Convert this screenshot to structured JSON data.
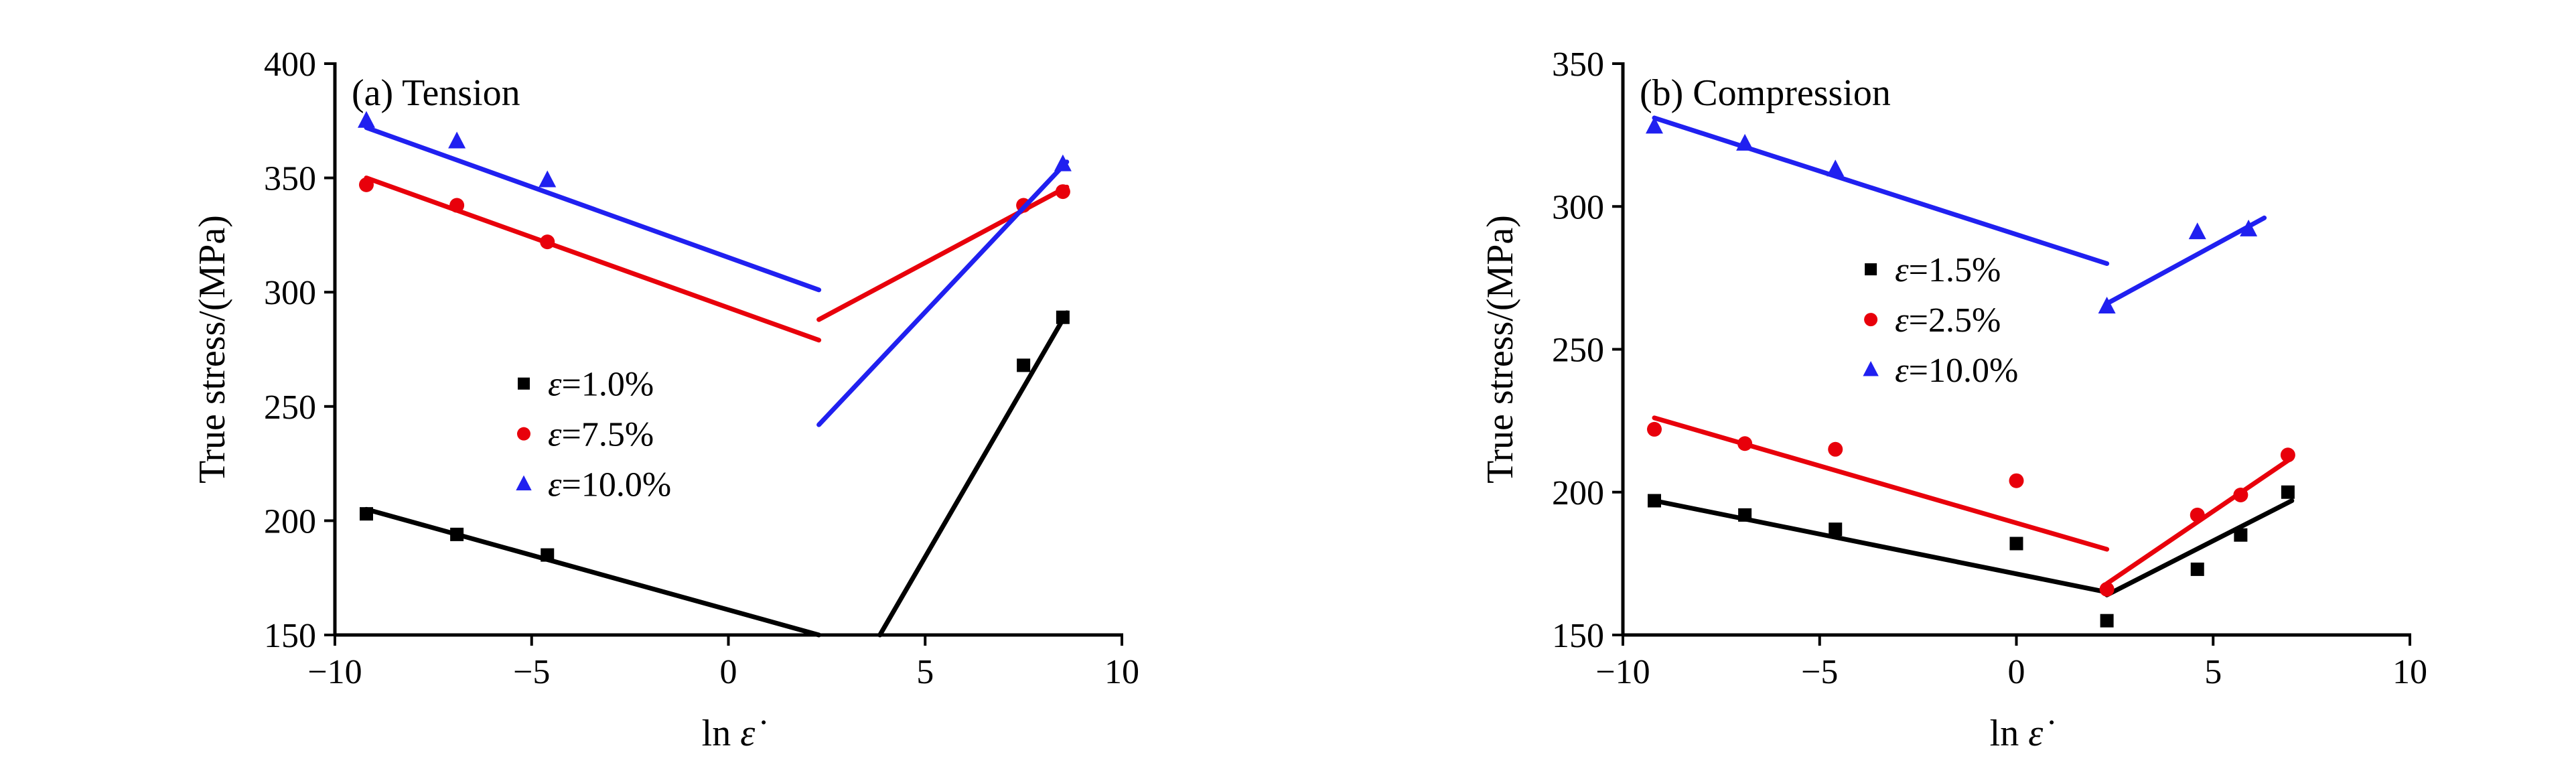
{
  "figure": {
    "background": "#ffffff",
    "axis_color": "#000000"
  },
  "chart_data": [
    {
      "type": "scatter",
      "panel_label": "(a) Tension",
      "xlabel_roman": "ln",
      "xlabel_italic": "ε̇",
      "ylabel": "True stress/(MPa)",
      "xlim": [
        -10,
        10
      ],
      "ylim": [
        150,
        400
      ],
      "xticks": [
        -10,
        -5,
        0,
        5,
        10
      ],
      "yticks": [
        150,
        200,
        250,
        300,
        350,
        400
      ],
      "grid": false,
      "legend": {
        "fx": 0.24,
        "fy": 0.56,
        "row_gap": 75
      },
      "series": [
        {
          "label_symbol": "ε",
          "label_rest": "=1.0%",
          "color": "#000000",
          "marker": "square",
          "points": [
            [
              -9.2,
              203
            ],
            [
              -6.9,
              194
            ],
            [
              -4.6,
              185
            ],
            [
              7.5,
              268
            ],
            [
              8.5,
              289
            ]
          ],
          "fit_lines": [
            [
              [
                -9.2,
                205
              ],
              [
                2.3,
                150
              ]
            ],
            [
              [
                3.85,
                150
              ],
              [
                8.6,
                291
              ]
            ]
          ]
        },
        {
          "label_symbol": "ε",
          "label_rest": "=7.5%",
          "color": "#e8000b",
          "marker": "circle",
          "points": [
            [
              -9.2,
              347
            ],
            [
              -6.9,
              338
            ],
            [
              -4.6,
              322
            ],
            [
              7.5,
              338
            ],
            [
              8.5,
              344
            ]
          ],
          "fit_lines": [
            [
              [
                -9.2,
                350
              ],
              [
                2.3,
                279
              ]
            ],
            [
              [
                2.3,
                288
              ],
              [
                8.6,
                346
              ]
            ]
          ]
        },
        {
          "label_symbol": "ε",
          "label_rest": "=10.0%",
          "color": "#2020f0",
          "marker": "triangle",
          "points": [
            [
              -9.2,
              375
            ],
            [
              -6.9,
              366
            ],
            [
              -4.6,
              349
            ],
            [
              8.5,
              356
            ]
          ],
          "fit_lines": [
            [
              [
                -9.2,
                372
              ],
              [
                2.3,
                301
              ]
            ],
            [
              [
                2.3,
                242
              ],
              [
                8.6,
                357
              ]
            ]
          ]
        }
      ]
    },
    {
      "type": "scatter",
      "panel_label": "(b) Compression",
      "xlabel_roman": "ln",
      "xlabel_italic": "ε̇",
      "ylabel": "True stress/(MPa)",
      "xlim": [
        -10,
        10
      ],
      "ylim": [
        150,
        350
      ],
      "xticks": [
        -10,
        -5,
        0,
        5,
        10
      ],
      "yticks": [
        150,
        200,
        250,
        300,
        350
      ],
      "grid": false,
      "legend": {
        "fx": 0.315,
        "fy": 0.36,
        "row_gap": 75
      },
      "series": [
        {
          "label_symbol": "ε",
          "label_rest": "=1.5%",
          "color": "#000000",
          "marker": "square",
          "points": [
            [
              -9.2,
              197
            ],
            [
              -6.9,
              192
            ],
            [
              -4.6,
              187
            ],
            [
              0,
              182
            ],
            [
              2.3,
              155
            ],
            [
              4.6,
              173
            ],
            [
              5.7,
              185
            ],
            [
              6.9,
              200
            ]
          ],
          "fit_lines": [
            [
              [
                -9.2,
                197
              ],
              [
                2.3,
                165
              ]
            ],
            [
              [
                2.3,
                164
              ],
              [
                7.0,
                197
              ]
            ]
          ]
        },
        {
          "label_symbol": "ε",
          "label_rest": "=2.5%",
          "color": "#e8000b",
          "marker": "circle",
          "points": [
            [
              -9.2,
              222
            ],
            [
              -6.9,
              217
            ],
            [
              -4.6,
              215
            ],
            [
              0,
              204
            ],
            [
              2.3,
              166
            ],
            [
              4.6,
              192
            ],
            [
              5.7,
              199
            ],
            [
              6.9,
              213
            ]
          ],
          "fit_lines": [
            [
              [
                -9.2,
                226
              ],
              [
                2.3,
                180
              ]
            ],
            [
              [
                2.3,
                168
              ],
              [
                7.0,
                212
              ]
            ]
          ]
        },
        {
          "label_symbol": "ε",
          "label_rest": "=10.0%",
          "color": "#2020f0",
          "marker": "triangle",
          "points": [
            [
              -9.2,
              328
            ],
            [
              -6.9,
              322
            ],
            [
              -4.6,
              313
            ],
            [
              2.3,
              265
            ],
            [
              4.6,
              291
            ],
            [
              5.9,
              292
            ]
          ],
          "fit_lines": [
            [
              [
                -9.2,
                331
              ],
              [
                2.3,
                280
              ]
            ],
            [
              [
                2.3,
                266
              ],
              [
                6.3,
                296
              ]
            ]
          ]
        }
      ]
    }
  ]
}
